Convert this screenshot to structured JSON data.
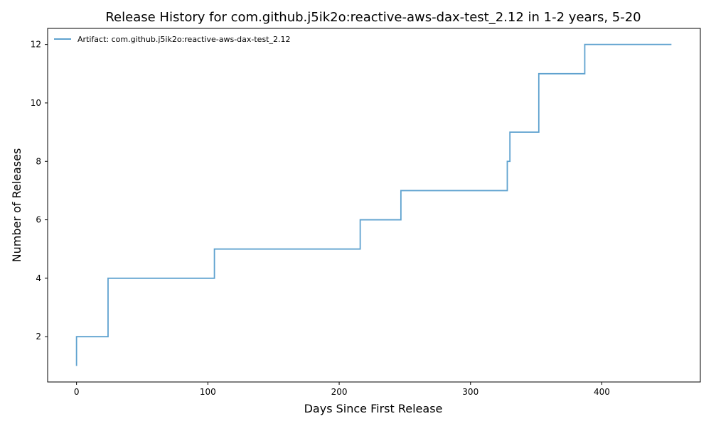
{
  "chart_data": {
    "type": "line",
    "step": "post",
    "title": "Release History for com.github.j5ik2o:reactive-aws-dax-test_2.12 in 1-2 years, 5-20",
    "xlabel": "Days Since First Release",
    "ylabel": "Number of Releases",
    "xlim": [
      -22,
      475
    ],
    "ylim": [
      0.45,
      12.55
    ],
    "xticks": [
      0,
      100,
      200,
      300,
      400
    ],
    "yticks": [
      2,
      4,
      6,
      8,
      10,
      12
    ],
    "grid": false,
    "legend_position": "top-left",
    "series": [
      {
        "name": "Artifact: com.github.j5ik2o:reactive-aws-dax-test_2.12",
        "color": "#5fa2cf",
        "x": [
          0,
          0,
          24,
          105,
          216,
          247,
          328,
          329,
          330,
          352,
          387,
          453
        ],
        "y": [
          1,
          2,
          4,
          5,
          6,
          7,
          8,
          8,
          9,
          11,
          12,
          12
        ]
      }
    ]
  }
}
